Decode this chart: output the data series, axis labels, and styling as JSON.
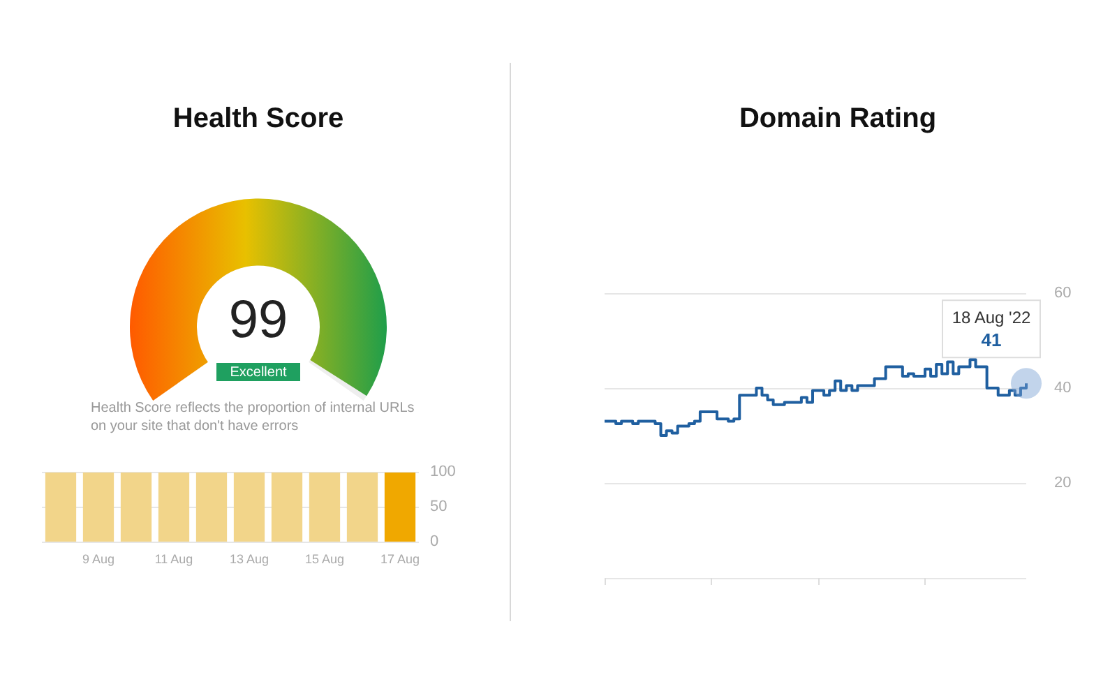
{
  "chart_data": [
    {
      "type": "other",
      "title": "Health Score",
      "values": [
        99
      ],
      "data_labels": true,
      "annotations": [
        "Excellent",
        "Health Score reflects the proportion of internal URLs on your site that don't have errors"
      ]
    },
    {
      "type": "bar",
      "categories": [
        null,
        "9 Aug",
        null,
        "11 Aug",
        null,
        "13 Aug",
        null,
        "15 Aug",
        null,
        "17 Aug"
      ],
      "values": [
        99,
        99,
        99,
        99,
        99,
        99,
        99,
        99,
        99,
        99
      ],
      "colors": [
        "#f2d58a",
        "#f2d58a",
        "#f2d58a",
        "#f2d58a",
        "#f2d58a",
        "#f2d58a",
        "#f2d58a",
        "#f2d58a",
        "#f2d58a",
        "#f0a800"
      ],
      "ylim": [
        0,
        100
      ],
      "yticks": [
        0,
        50,
        100
      ],
      "grid": "y"
    },
    {
      "type": "step",
      "title": "Domain Rating",
      "color": "#1f5fa0",
      "categories": [
        null,
        null,
        null,
        null,
        null,
        null,
        null,
        null,
        null,
        null,
        null,
        null,
        null,
        null,
        null,
        null,
        null,
        null,
        null,
        null,
        null,
        null,
        null,
        null,
        null,
        null,
        null,
        null,
        null,
        null,
        null,
        null,
        null,
        null,
        null,
        null,
        null,
        null,
        null,
        null,
        null,
        null,
        null,
        null,
        null,
        null,
        null,
        null,
        null,
        null,
        null,
        null,
        null,
        null,
        null,
        null,
        null,
        null,
        null,
        null,
        null,
        null,
        null,
        null,
        null,
        null,
        null,
        null,
        null,
        null,
        null,
        null,
        null,
        null,
        null,
        null
      ],
      "values": [
        33,
        33,
        32.5,
        33,
        33,
        32.5,
        33,
        33,
        33,
        32.5,
        30,
        31,
        30.5,
        32,
        32,
        32.5,
        33,
        35,
        35,
        35,
        33.5,
        33.5,
        33,
        33.5,
        38.5,
        38.5,
        38.5,
        40,
        38.5,
        37.5,
        36.5,
        36.5,
        37,
        37,
        37,
        38,
        37,
        39.5,
        39.5,
        38.5,
        39.5,
        41.5,
        39.5,
        40.5,
        39.5,
        40.5,
        40.5,
        40.5,
        42,
        42,
        44.5,
        44.5,
        44.5,
        42.5,
        43,
        42.5,
        42.5,
        44,
        42.5,
        45,
        43,
        45.5,
        43,
        44.5,
        44.5,
        46,
        44.5,
        44.5,
        40,
        40,
        38.5,
        38.5,
        39.5,
        38.5,
        40,
        41
      ],
      "value_labels": [
        null,
        null,
        null,
        null,
        null,
        null,
        null,
        null,
        null,
        null,
        null,
        null,
        null,
        null,
        null,
        null,
        null,
        null,
        null,
        null,
        null,
        null,
        null,
        null,
        null,
        null,
        null,
        null,
        null,
        null,
        null,
        null,
        null,
        null,
        null,
        null,
        null,
        null,
        null,
        null,
        null,
        null,
        null,
        null,
        null,
        null,
        null,
        null,
        null,
        null,
        null,
        null,
        null,
        null,
        null,
        null,
        null,
        null,
        null,
        null,
        null,
        null,
        null,
        null,
        null,
        null,
        null,
        null,
        null,
        null,
        null,
        null,
        null,
        null,
        null,
        "41"
      ],
      "annotations": [
        "18 Aug '22"
      ],
      "ylim": [
        0,
        60
      ],
      "yticks": [
        {
          "value": 0,
          "label": null
        },
        20,
        40,
        60
      ],
      "grid": "y"
    }
  ]
}
